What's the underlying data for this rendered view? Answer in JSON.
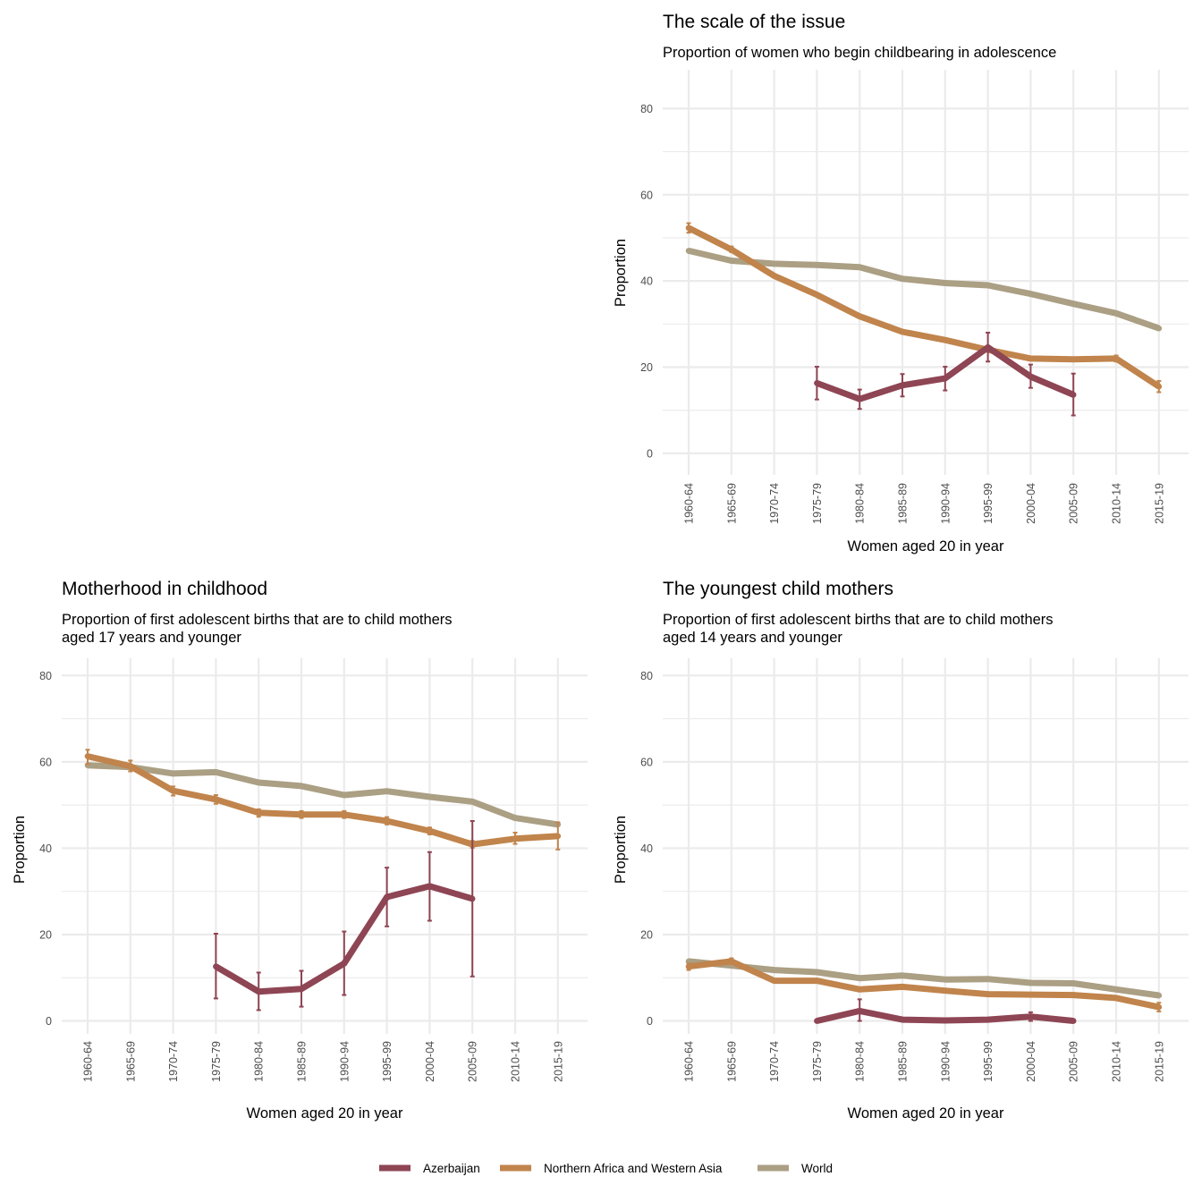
{
  "legend": [
    {
      "name": "Azerbaijan",
      "color": "#8e4554"
    },
    {
      "name": "Northern Africa and Western Asia",
      "color": "#c0844c"
    },
    {
      "name": "World",
      "color": "#ab9f84"
    }
  ],
  "chart_data": [
    {
      "id": "scale",
      "type": "line",
      "title": "The scale of the issue",
      "subtitle": [
        "Proportion of women who begin childbearing in adolescence"
      ],
      "xlabel": "Women aged 20 in year",
      "ylabel": "Proportion",
      "categories": [
        "1960-64",
        "1965-69",
        "1970-74",
        "1975-79",
        "1980-84",
        "1985-89",
        "1990-94",
        "1995-99",
        "2000-04",
        "2005-09",
        "2010-14",
        "2015-19"
      ],
      "ylim": [
        -5,
        89
      ],
      "yticks": [
        0,
        20,
        40,
        60,
        80
      ],
      "grid": true,
      "series": [
        {
          "name": "World",
          "color": "#ab9f84",
          "values": [
            47,
            44.7,
            44,
            43.7,
            43.2,
            40.5,
            39.5,
            39,
            37,
            34.7,
            32.5,
            29
          ],
          "errors": []
        },
        {
          "name": "Northern Africa and Western Asia",
          "color": "#c0844c",
          "values": [
            52.3,
            47.3,
            41.2,
            36.8,
            31.8,
            28.2,
            26.3,
            24,
            22,
            21.8,
            22,
            15.5
          ],
          "errors": [
            [
              0,
              51.2,
              53.4
            ],
            [
              1,
              46.7,
              48
            ],
            [
              10,
              21.3,
              22.7
            ],
            [
              11,
              14.2,
              16.8
            ]
          ]
        },
        {
          "name": "Azerbaijan",
          "color": "#8e4554",
          "values": [
            null,
            null,
            null,
            16.3,
            12.6,
            15.8,
            17.4,
            24.6,
            17.8,
            13.6,
            null,
            null
          ],
          "errors": [
            [
              3,
              12.5,
              20.1
            ],
            [
              4,
              10.3,
              14.8
            ],
            [
              5,
              13.2,
              18.4
            ],
            [
              6,
              14.6,
              20.1
            ],
            [
              7,
              21.3,
              28
            ],
            [
              8,
              15.2,
              20.6
            ],
            [
              9,
              8.8,
              18.5
            ]
          ]
        }
      ]
    },
    {
      "id": "motherhood",
      "type": "line",
      "title": "Motherhood in childhood",
      "subtitle": [
        "Proportion of first adolescent births that are to child mothers",
        "aged 17 years and younger"
      ],
      "xlabel": "Women aged 20 in year",
      "ylabel": "Proportion",
      "categories": [
        "1960-64",
        "1965-69",
        "1970-74",
        "1975-79",
        "1980-84",
        "1985-89",
        "1990-94",
        "1995-99",
        "2000-04",
        "2005-09",
        "2010-14",
        "2015-19"
      ],
      "ylim": [
        -3,
        84
      ],
      "yticks": [
        0,
        20,
        40,
        60,
        80
      ],
      "grid": true,
      "series": [
        {
          "name": "World",
          "color": "#ab9f84",
          "values": [
            59.2,
            58.8,
            57.3,
            57.6,
            55.2,
            54.4,
            52.3,
            53.2,
            51.9,
            50.8,
            47,
            45.5
          ],
          "errors": []
        },
        {
          "name": "Northern Africa and Western Asia",
          "color": "#c0844c",
          "values": [
            61.3,
            59,
            53.3,
            51.3,
            48.2,
            47.8,
            47.8,
            46.3,
            44,
            40.9,
            42.2,
            42.8
          ],
          "errors": [
            [
              0,
              59.5,
              62.8
            ],
            [
              1,
              57.8,
              60.3
            ],
            [
              2,
              52.2,
              54.3
            ],
            [
              3,
              50.3,
              52.3
            ],
            [
              4,
              47.3,
              49
            ],
            [
              5,
              47,
              48.6
            ],
            [
              6,
              47,
              48.6
            ],
            [
              7,
              45.5,
              47.2
            ],
            [
              8,
              43.2,
              44.8
            ],
            [
              9,
              40.1,
              41.7
            ],
            [
              10,
              41,
              43.6
            ],
            [
              11,
              39.7,
              46
            ]
          ]
        },
        {
          "name": "Azerbaijan",
          "color": "#8e4554",
          "values": [
            null,
            null,
            null,
            12.6,
            6.8,
            7.4,
            13.3,
            28.7,
            31.2,
            28.3,
            null,
            null
          ],
          "errors": [
            [
              3,
              5.2,
              20.2
            ],
            [
              4,
              2.5,
              11.2
            ],
            [
              5,
              3.3,
              11.6
            ],
            [
              6,
              6,
              20.7
            ],
            [
              7,
              21.9,
              35.5
            ],
            [
              8,
              23.2,
              39.1
            ],
            [
              9,
              10.3,
              46.3
            ]
          ]
        }
      ]
    },
    {
      "id": "youngest",
      "type": "line",
      "title": "The youngest child mothers",
      "subtitle": [
        "Proportion of first adolescent births that are to child mothers",
        "aged 14 years and younger"
      ],
      "xlabel": "Women aged 20 in year",
      "ylabel": "Proportion",
      "categories": [
        "1960-64",
        "1965-69",
        "1970-74",
        "1975-79",
        "1980-84",
        "1985-89",
        "1990-94",
        "1995-99",
        "2000-04",
        "2005-09",
        "2010-14",
        "2015-19"
      ],
      "ylim": [
        -3,
        84
      ],
      "yticks": [
        0,
        20,
        40,
        60,
        80
      ],
      "grid": true,
      "series": [
        {
          "name": "World",
          "color": "#ab9f84",
          "values": [
            13.8,
            12.8,
            11.8,
            11.3,
            9.9,
            10.5,
            9.6,
            9.7,
            8.8,
            8.7,
            7.3,
            5.9
          ],
          "errors": []
        },
        {
          "name": "Northern Africa and Western Asia",
          "color": "#c0844c",
          "values": [
            12.6,
            13.8,
            9.3,
            9.3,
            7.3,
            7.9,
            7,
            6.2,
            6.1,
            6,
            5.3,
            3.2
          ],
          "errors": [
            [
              0,
              11.8,
              13.3
            ],
            [
              1,
              13.2,
              14.5
            ],
            [
              11,
              2.2,
              4.2
            ]
          ]
        },
        {
          "name": "Azerbaijan",
          "color": "#8e4554",
          "values": [
            null,
            null,
            null,
            0,
            2.3,
            0.3,
            0.1,
            0.3,
            1,
            0,
            null,
            null
          ],
          "errors": [
            [
              4,
              0,
              5
            ],
            [
              8,
              0,
              2
            ]
          ]
        }
      ]
    }
  ]
}
